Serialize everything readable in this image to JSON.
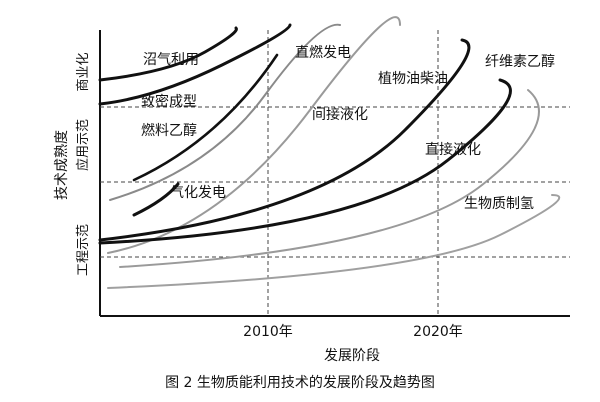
{
  "caption": "图 2   生物质能利用技术的发展阶段及趋势图",
  "chart_data": {
    "type": "line",
    "title": "",
    "xlabel": "发展阶段",
    "ylabel": "技术成熟度",
    "x_ticks": [
      "2010年",
      "2020年"
    ],
    "y_levels": [
      "工程示范",
      "应用示范",
      "商业化"
    ],
    "grid": "dashed",
    "series": [
      {
        "name": "沼气利用",
        "color": "#111111",
        "stroke": 3
      },
      {
        "name": "致密成型",
        "color": "#111111",
        "stroke": 3
      },
      {
        "name": "燃料乙醇",
        "color": "#8a8a8a",
        "stroke": 2
      },
      {
        "name": "直燃发电",
        "color": "#111111",
        "stroke": 2.6
      },
      {
        "name": "气化发电",
        "color": "#111111",
        "stroke": 3
      },
      {
        "name": "间接液化",
        "color": "#9a9a9a",
        "stroke": 2
      },
      {
        "name": "植物油柴油",
        "color": "#111111",
        "stroke": 3
      },
      {
        "name": "纤维素乙醇",
        "color": "#111111",
        "stroke": 3
      },
      {
        "name": "直接液化",
        "color": "#9a9a9a",
        "stroke": 2
      },
      {
        "name": "生物质制氢",
        "color": "#a0a0a0",
        "stroke": 2
      }
    ]
  }
}
